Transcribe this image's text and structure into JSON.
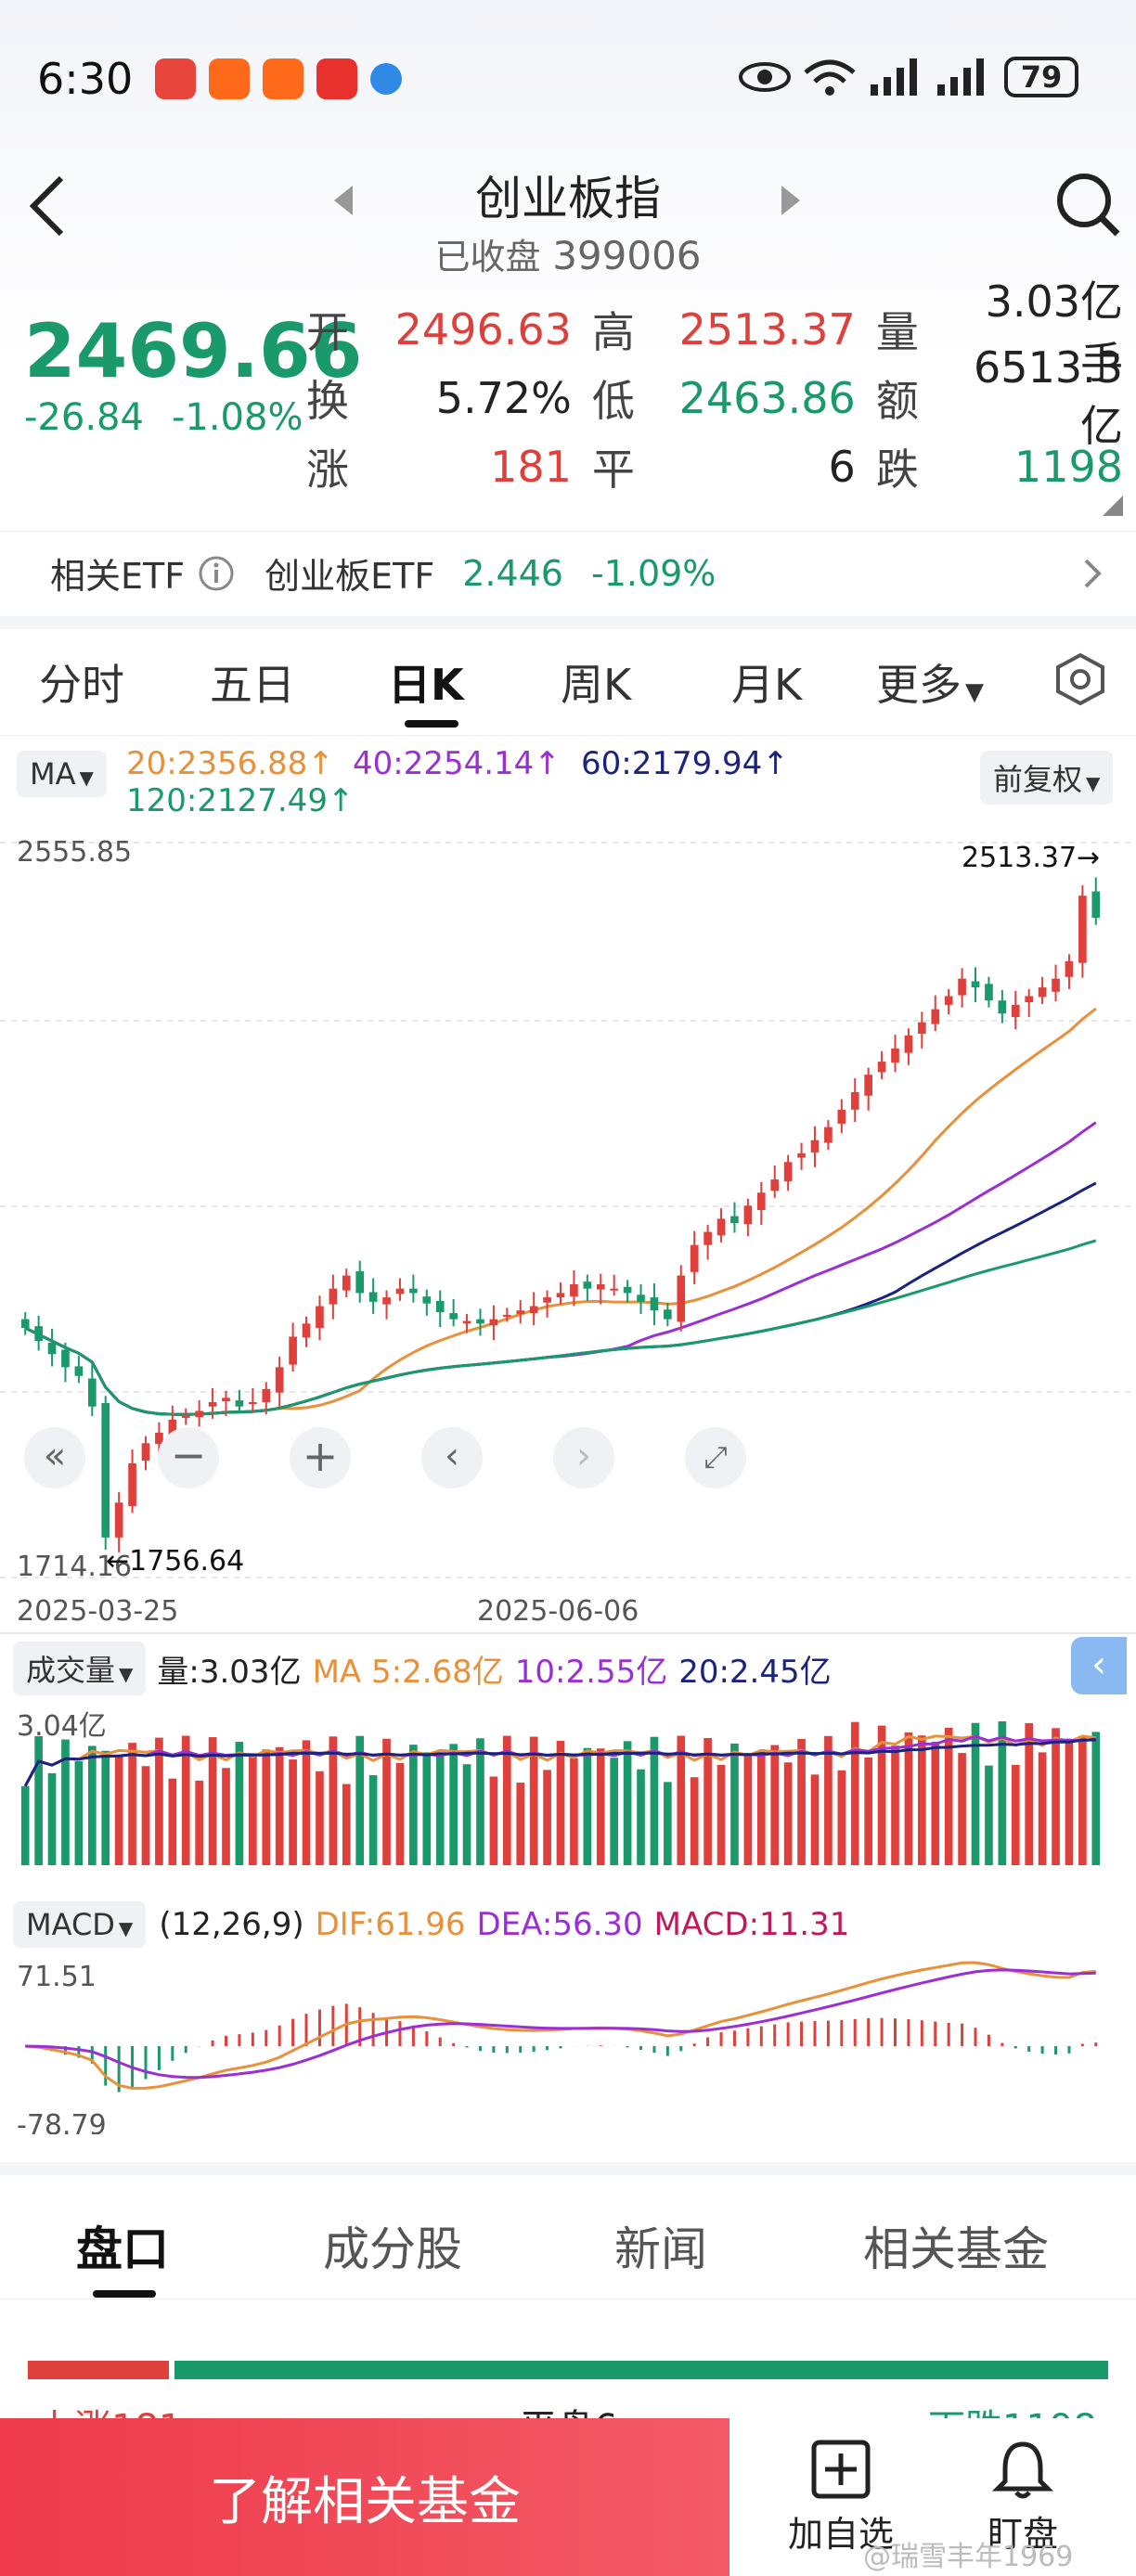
{
  "status_bar": {
    "time": "6:30",
    "battery": "79"
  },
  "header": {
    "title": "创业板指",
    "status_text": "已收盘",
    "code": "399006"
  },
  "quote": {
    "price": "2469.66",
    "change": "-26.84",
    "change_pct": "-1.08%",
    "open_label": "开",
    "open": "2496.63",
    "high_label": "高",
    "high": "2513.37",
    "vol_label": "量",
    "vol": "3.03亿手",
    "turnover_label": "换",
    "turnover": "5.72%",
    "low_label": "低",
    "low": "2463.86",
    "amount_label": "额",
    "amount": "6513.3亿",
    "up_label": "涨",
    "up": "181",
    "flat_label": "平",
    "flat": "6",
    "down_label": "跌",
    "down": "1198"
  },
  "etf": {
    "label": "相关ETF",
    "name": "创业板ETF",
    "price": "2.446",
    "pct": "-1.09%"
  },
  "chart_tabs": [
    "分时",
    "五日",
    "日K",
    "周K",
    "月K",
    "更多"
  ],
  "active_tab": "日K",
  "ma_legend": {
    "selector": "MA",
    "ma20": "20:2356.88↑",
    "ma40": "40:2254.14↑",
    "ma60": "60:2179.94↑",
    "ma120": "120:2127.49↑",
    "adjust": "前复权"
  },
  "kline_labels": {
    "ymax": "2555.85",
    "ymin": "1714.16",
    "high_mark": "2513.37→",
    "low_mark": "←1756.64",
    "date_start": "2025-03-25",
    "date_mid": "2025-06-06"
  },
  "volume_legend": {
    "selector": "成交量",
    "vol": "量:3.03亿",
    "ma5": "MA 5:2.68亿",
    "ma10": "10:2.55亿",
    "ma20": "20:2.45亿",
    "ymax": "3.04亿"
  },
  "macd_legend": {
    "selector": "MACD",
    "params": "(12,26,9)",
    "dif": "DIF:61.96",
    "dea": "DEA:56.30",
    "macd": "MACD:11.31",
    "ymax": "71.51",
    "ymin": "-78.79"
  },
  "bottom_tabs": [
    "盘口",
    "成分股",
    "新闻",
    "相关基金"
  ],
  "breadth": {
    "up_text": "上涨181",
    "flat_text": "平盘6",
    "down_text": "下跌1198"
  },
  "footer": {
    "cta": "了解相关基金",
    "add_watch": "加自选",
    "watch": "盯盘",
    "watermark": "@瑞雪丰年1969"
  },
  "colors": {
    "up": "#e0403c",
    "down": "#1a9a6b",
    "ma20": "#e8903a",
    "ma40": "#9b2fd6",
    "ma60": "#1a237e",
    "ma120": "#1a9a6b"
  },
  "chart_data": {
    "type": "candlestick",
    "x_start": "2025-03-25",
    "x_mid": "2025-06-06",
    "ylim": [
      1714.16,
      2555.85
    ],
    "close_series": [
      2000,
      1985,
      1970,
      1955,
      1945,
      1910,
      1760,
      1800,
      1845,
      1868,
      1880,
      1895,
      1900,
      1905,
      1915,
      1920,
      1910,
      1915,
      1930,
      1955,
      1990,
      2005,
      2025,
      2045,
      2060,
      2040,
      2030,
      2035,
      2045,
      2040,
      2028,
      2018,
      2010,
      2008,
      2005,
      2010,
      2015,
      2020,
      2025,
      2035,
      2040,
      2050,
      2045,
      2050,
      2045,
      2040,
      2030,
      2020,
      2010,
      2060,
      2095,
      2110,
      2125,
      2120,
      2140,
      2155,
      2170,
      2190,
      2200,
      2215,
      2230,
      2250,
      2270,
      2290,
      2305,
      2320,
      2335,
      2350,
      2365,
      2380,
      2400,
      2390,
      2375,
      2360,
      2370,
      2380,
      2390,
      2400,
      2420,
      2495,
      2469.66
    ],
    "up_count": 181,
    "down_count": 1198,
    "flat_count": 6
  }
}
